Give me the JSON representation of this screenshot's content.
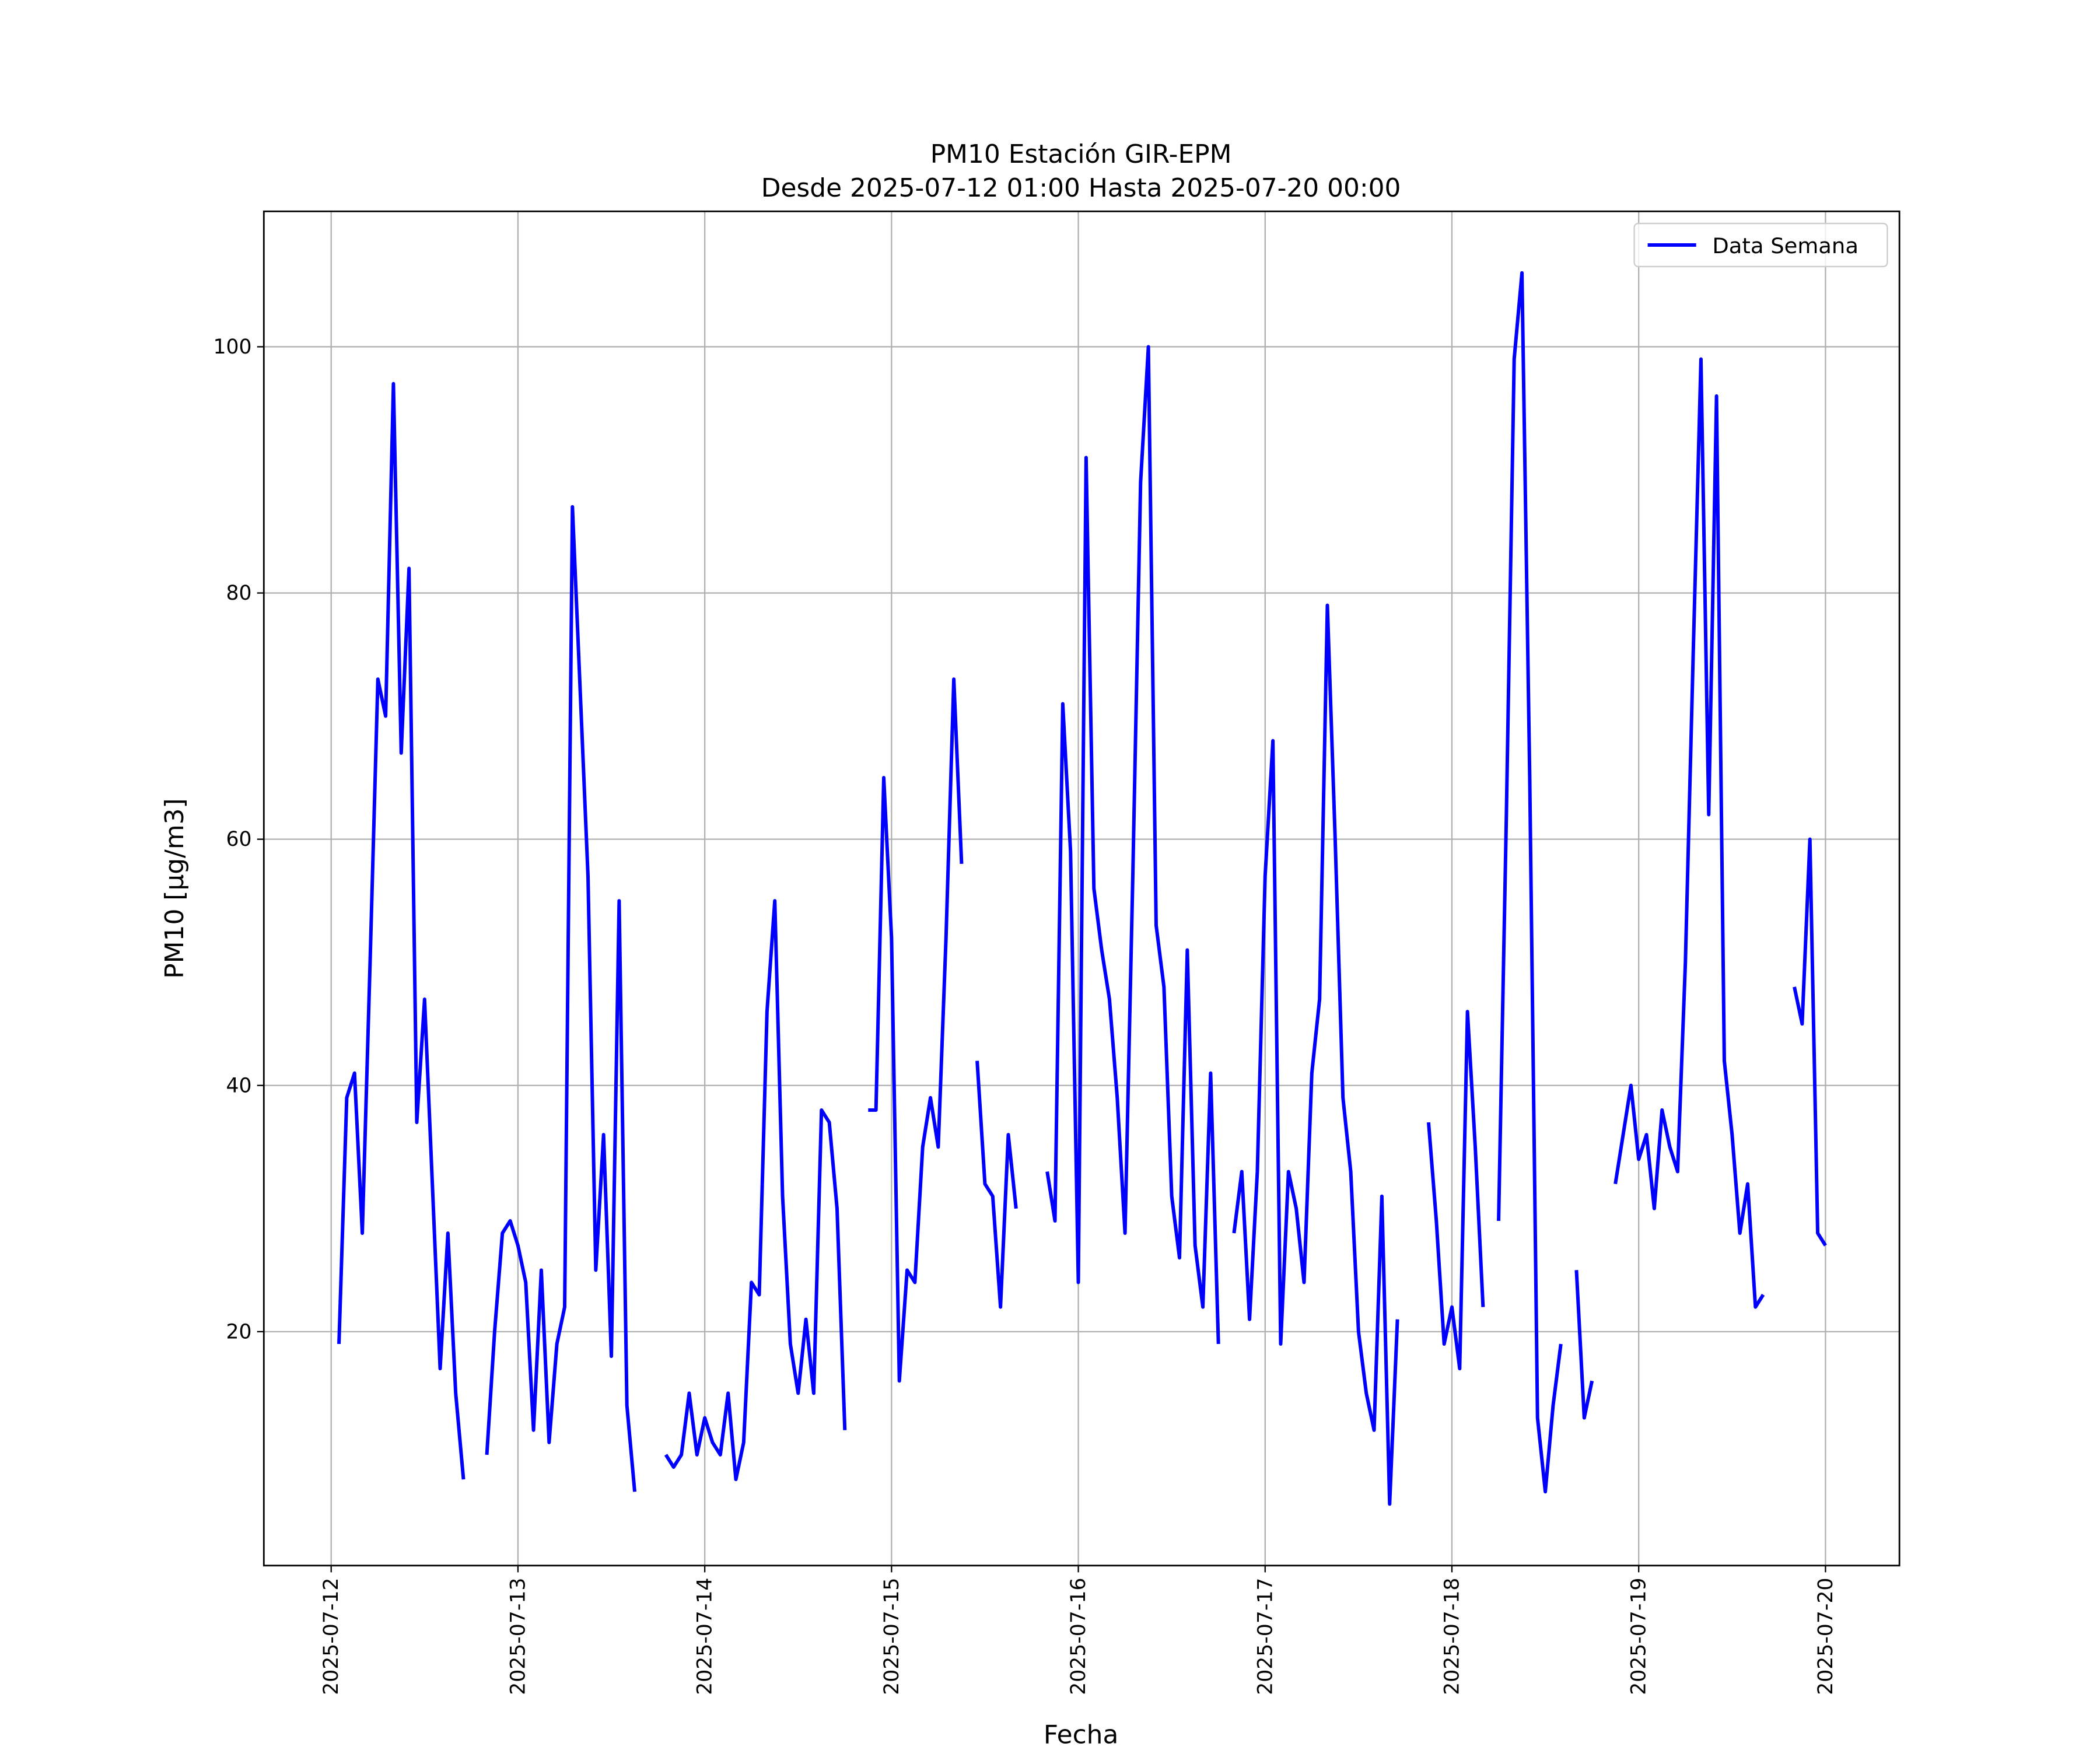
{
  "chart_data": {
    "type": "line",
    "title": "PM10 Estación GIR-EPM",
    "subtitle": "Desde 2025-07-12 01:00 Hasta 2025-07-20 00:00",
    "xlabel": "Fecha",
    "ylabel": "PM10 [μg/m3]",
    "x": [
      "2025-07-12 01:00",
      "2025-07-12 02:00",
      "2025-07-12 03:00",
      "2025-07-12 04:00",
      "2025-07-12 05:00",
      "2025-07-12 06:00",
      "2025-07-12 07:00",
      "2025-07-12 08:00",
      "2025-07-12 09:00",
      "2025-07-12 10:00",
      "2025-07-12 11:00",
      "2025-07-12 12:00",
      "2025-07-12 13:00",
      "2025-07-12 14:00",
      "2025-07-12 15:00",
      "2025-07-12 16:00",
      "2025-07-12 17:00",
      "2025-07-12 18:00",
      "2025-07-12 19:00",
      "2025-07-12 20:00",
      "2025-07-12 21:00",
      "2025-07-12 22:00",
      "2025-07-12 23:00",
      "2025-07-13 00:00",
      "2025-07-13 01:00",
      "2025-07-13 02:00",
      "2025-07-13 03:00",
      "2025-07-13 04:00",
      "2025-07-13 05:00",
      "2025-07-13 06:00",
      "2025-07-13 07:00",
      "2025-07-13 08:00",
      "2025-07-13 09:00",
      "2025-07-13 10:00",
      "2025-07-13 11:00",
      "2025-07-13 12:00",
      "2025-07-13 13:00",
      "2025-07-13 14:00",
      "2025-07-13 15:00",
      "2025-07-13 16:00",
      "2025-07-13 17:00",
      "2025-07-13 18:00",
      "2025-07-13 19:00",
      "2025-07-13 20:00",
      "2025-07-13 21:00",
      "2025-07-13 22:00",
      "2025-07-13 23:00",
      "2025-07-14 00:00",
      "2025-07-14 01:00",
      "2025-07-14 02:00",
      "2025-07-14 03:00",
      "2025-07-14 04:00",
      "2025-07-14 05:00",
      "2025-07-14 06:00",
      "2025-07-14 07:00",
      "2025-07-14 08:00",
      "2025-07-14 09:00",
      "2025-07-14 10:00",
      "2025-07-14 11:00",
      "2025-07-14 12:00",
      "2025-07-14 13:00",
      "2025-07-14 14:00",
      "2025-07-14 15:00",
      "2025-07-14 16:00",
      "2025-07-14 17:00",
      "2025-07-14 18:00",
      "2025-07-14 19:00",
      "2025-07-14 20:00",
      "2025-07-14 21:00",
      "2025-07-14 22:00",
      "2025-07-14 23:00",
      "2025-07-15 00:00",
      "2025-07-15 01:00",
      "2025-07-15 02:00",
      "2025-07-15 03:00",
      "2025-07-15 04:00",
      "2025-07-15 05:00",
      "2025-07-15 06:00",
      "2025-07-15 07:00",
      "2025-07-15 08:00",
      "2025-07-15 09:00",
      "2025-07-15 10:00",
      "2025-07-15 11:00",
      "2025-07-15 12:00",
      "2025-07-15 13:00",
      "2025-07-15 14:00",
      "2025-07-15 15:00",
      "2025-07-15 16:00",
      "2025-07-15 17:00",
      "2025-07-15 18:00",
      "2025-07-15 19:00",
      "2025-07-15 20:00",
      "2025-07-15 21:00",
      "2025-07-15 22:00",
      "2025-07-15 23:00",
      "2025-07-16 00:00",
      "2025-07-16 01:00",
      "2025-07-16 02:00",
      "2025-07-16 03:00",
      "2025-07-16 04:00",
      "2025-07-16 05:00",
      "2025-07-16 06:00",
      "2025-07-16 07:00",
      "2025-07-16 08:00",
      "2025-07-16 09:00",
      "2025-07-16 10:00",
      "2025-07-16 11:00",
      "2025-07-16 12:00",
      "2025-07-16 13:00",
      "2025-07-16 14:00",
      "2025-07-16 15:00",
      "2025-07-16 16:00",
      "2025-07-16 17:00",
      "2025-07-16 18:00",
      "2025-07-16 19:00",
      "2025-07-16 20:00",
      "2025-07-16 21:00",
      "2025-07-16 22:00",
      "2025-07-16 23:00",
      "2025-07-17 00:00",
      "2025-07-17 01:00",
      "2025-07-17 02:00",
      "2025-07-17 03:00",
      "2025-07-17 04:00",
      "2025-07-17 05:00",
      "2025-07-17 06:00",
      "2025-07-17 07:00",
      "2025-07-17 08:00",
      "2025-07-17 09:00",
      "2025-07-17 10:00",
      "2025-07-17 11:00",
      "2025-07-17 12:00",
      "2025-07-17 13:00",
      "2025-07-17 14:00",
      "2025-07-17 15:00",
      "2025-07-17 16:00",
      "2025-07-17 17:00",
      "2025-07-17 18:00",
      "2025-07-17 19:00",
      "2025-07-17 20:00",
      "2025-07-17 21:00",
      "2025-07-17 22:00",
      "2025-07-17 23:00",
      "2025-07-18 00:00",
      "2025-07-18 01:00",
      "2025-07-18 02:00",
      "2025-07-18 03:00",
      "2025-07-18 04:00",
      "2025-07-18 05:00",
      "2025-07-18 06:00",
      "2025-07-18 07:00",
      "2025-07-18 08:00",
      "2025-07-18 09:00",
      "2025-07-18 10:00",
      "2025-07-18 11:00",
      "2025-07-18 12:00",
      "2025-07-18 13:00",
      "2025-07-18 14:00",
      "2025-07-18 15:00",
      "2025-07-18 16:00",
      "2025-07-18 17:00",
      "2025-07-18 18:00",
      "2025-07-18 19:00",
      "2025-07-18 20:00",
      "2025-07-18 21:00",
      "2025-07-18 22:00",
      "2025-07-18 23:00",
      "2025-07-19 00:00",
      "2025-07-19 01:00",
      "2025-07-19 02:00",
      "2025-07-19 03:00",
      "2025-07-19 04:00",
      "2025-07-19 05:00",
      "2025-07-19 06:00",
      "2025-07-19 07:00",
      "2025-07-19 08:00",
      "2025-07-19 09:00",
      "2025-07-19 10:00",
      "2025-07-19 11:00",
      "2025-07-19 12:00",
      "2025-07-19 13:00",
      "2025-07-19 14:00",
      "2025-07-19 15:00",
      "2025-07-19 16:00",
      "2025-07-19 17:00",
      "2025-07-19 18:00",
      "2025-07-19 19:00",
      "2025-07-19 20:00",
      "2025-07-19 21:00",
      "2025-07-19 22:00",
      "2025-07-19 23:00",
      "2025-07-20 00:00"
    ],
    "series": [
      {
        "name": "Data Semana",
        "color": "#0000ff",
        "values": [
          19,
          39,
          41,
          28,
          50,
          73,
          70,
          97,
          67,
          82,
          37,
          47,
          32,
          17,
          28,
          15,
          8,
          null,
          null,
          10,
          20,
          28,
          29,
          27,
          24,
          12,
          25,
          11,
          19,
          22,
          87,
          72,
          57,
          25,
          36,
          18,
          55,
          14,
          7,
          null,
          null,
          null,
          10,
          9,
          10,
          15,
          10,
          13,
          11,
          10,
          15,
          8,
          11,
          24,
          23,
          46,
          55,
          31,
          19,
          15,
          21,
          15,
          38,
          37,
          30,
          12,
          null,
          null,
          38,
          38,
          65,
          52,
          16,
          25,
          24,
          35,
          39,
          35,
          52,
          73,
          58,
          null,
          42,
          32,
          31,
          22,
          36,
          30,
          null,
          null,
          null,
          33,
          29,
          71,
          59,
          24,
          91,
          56,
          51,
          47,
          39,
          28,
          57,
          89,
          100,
          53,
          48,
          31,
          26,
          51,
          27,
          22,
          41,
          19,
          null,
          28,
          33,
          21,
          33,
          57,
          68,
          19,
          33,
          30,
          24,
          41,
          47,
          79,
          60,
          39,
          33,
          20,
          15,
          12,
          31,
          6,
          21,
          null,
          null,
          null,
          37,
          29,
          19,
          22,
          17,
          46,
          35,
          22,
          null,
          29,
          62,
          99,
          106,
          65,
          13,
          7,
          14,
          19,
          null,
          25,
          13,
          16,
          null,
          null,
          32,
          36,
          40,
          34,
          36,
          30,
          38,
          35,
          33,
          50,
          75,
          99,
          62,
          96,
          42,
          36,
          28,
          32,
          22,
          23,
          null,
          null,
          null,
          48,
          45,
          60,
          28,
          27
        ]
      }
    ],
    "xlim": [
      "2025-07-11 15:21",
      "2025-07-20 09:30"
    ],
    "xticks": [
      "2025-07-12",
      "2025-07-13",
      "2025-07-14",
      "2025-07-15",
      "2025-07-16",
      "2025-07-17",
      "2025-07-18",
      "2025-07-19",
      "2025-07-20"
    ],
    "ylim": [
      1,
      111
    ],
    "yticks": [
      20,
      40,
      60,
      80,
      100
    ],
    "grid": true,
    "legend": "upper right"
  }
}
